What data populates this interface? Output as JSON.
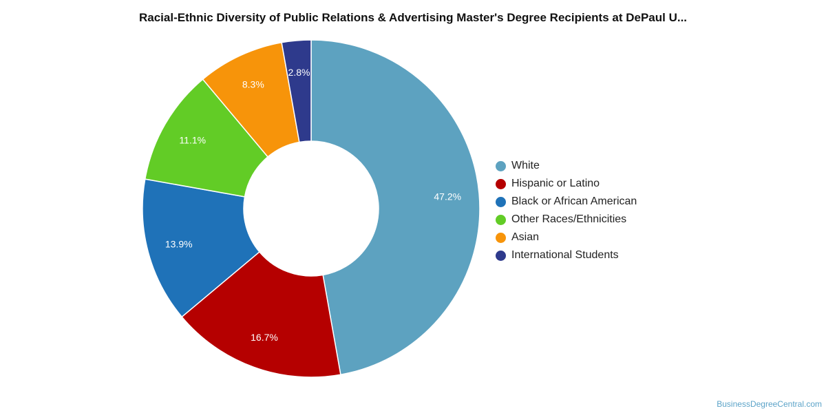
{
  "chart_data": {
    "type": "pie",
    "title": "Racial-Ethnic Diversity of Public Relations & Advertising Master's Degree Recipients at DePaul U...",
    "categories": [
      "White",
      "Hispanic or Latino",
      "Black or African American",
      "Other Races/Ethnicities",
      "Asian",
      "International Students"
    ],
    "values": [
      47.2,
      16.7,
      13.9,
      11.1,
      8.3,
      2.8
    ],
    "labels": [
      "47.2%",
      "16.7%",
      "13.9%",
      "11.1%",
      "8.3%",
      "2.8%"
    ],
    "colors": [
      "#5da2c0",
      "#b50000",
      "#1f72b8",
      "#62cc26",
      "#f7940a",
      "#2e3a8c"
    ],
    "donut": true,
    "legend_position": "right"
  },
  "source": "BusinessDegreeCentral.com"
}
